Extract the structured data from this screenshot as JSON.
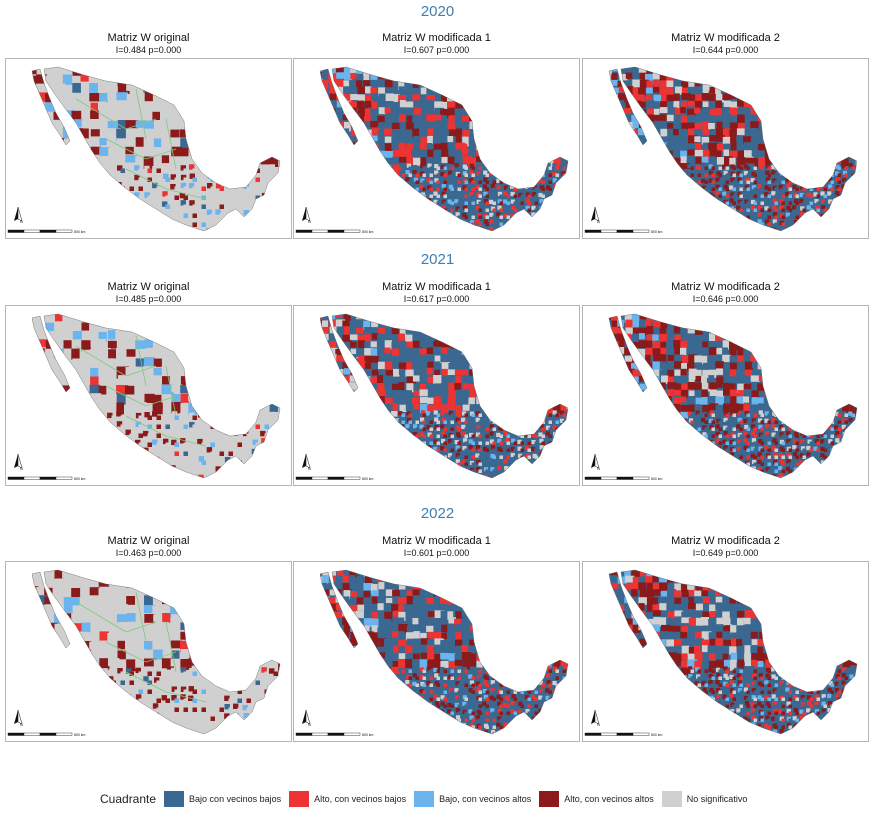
{
  "years": [
    {
      "year": "2020",
      "panels": [
        {
          "title": "Matriz W original",
          "stat": "I=0.484    p=0.000",
          "variant": "original"
        },
        {
          "title": "Matriz W modificada 1",
          "stat": "I=0.607    p=0.000",
          "variant": "mod1"
        },
        {
          "title": "Matriz W modificada 2",
          "stat": "I=0.644    p=0.000",
          "variant": "mod2"
        }
      ]
    },
    {
      "year": "2021",
      "panels": [
        {
          "title": "Matriz W original",
          "stat": "I=0.485    p=0.000",
          "variant": "original"
        },
        {
          "title": "Matriz W modificada 1",
          "stat": "I=0.617    p=0.000",
          "variant": "mod1"
        },
        {
          "title": "Matriz W modificada 2",
          "stat": "I=0.646    p=0.000",
          "variant": "mod2"
        }
      ]
    },
    {
      "year": "2022",
      "panels": [
        {
          "title": "Matriz W original",
          "stat": "I=0.463    p=0.000",
          "variant": "original"
        },
        {
          "title": "Matriz W modificada 1",
          "stat": "I=0.601    p=0.000",
          "variant": "mod1"
        },
        {
          "title": "Matriz W modificada 2",
          "stat": "I=0.649    p=0.000",
          "variant": "mod2"
        }
      ]
    }
  ],
  "scale_label": "800 km",
  "north_label": "N",
  "legend": {
    "title": "Cuadrante",
    "items": [
      {
        "label": "Bajo con vecinos bajos",
        "color": "#3a6890"
      },
      {
        "label": "Alto, con vecinos bajos",
        "color": "#ee3333"
      },
      {
        "label": "Bajo, con vecinos altos",
        "color": "#6cb4ee"
      },
      {
        "label": "Alto, con vecinos altos",
        "color": "#8b1a1a"
      },
      {
        "label": "No significativo",
        "color": "#d0d0d0"
      }
    ]
  }
}
